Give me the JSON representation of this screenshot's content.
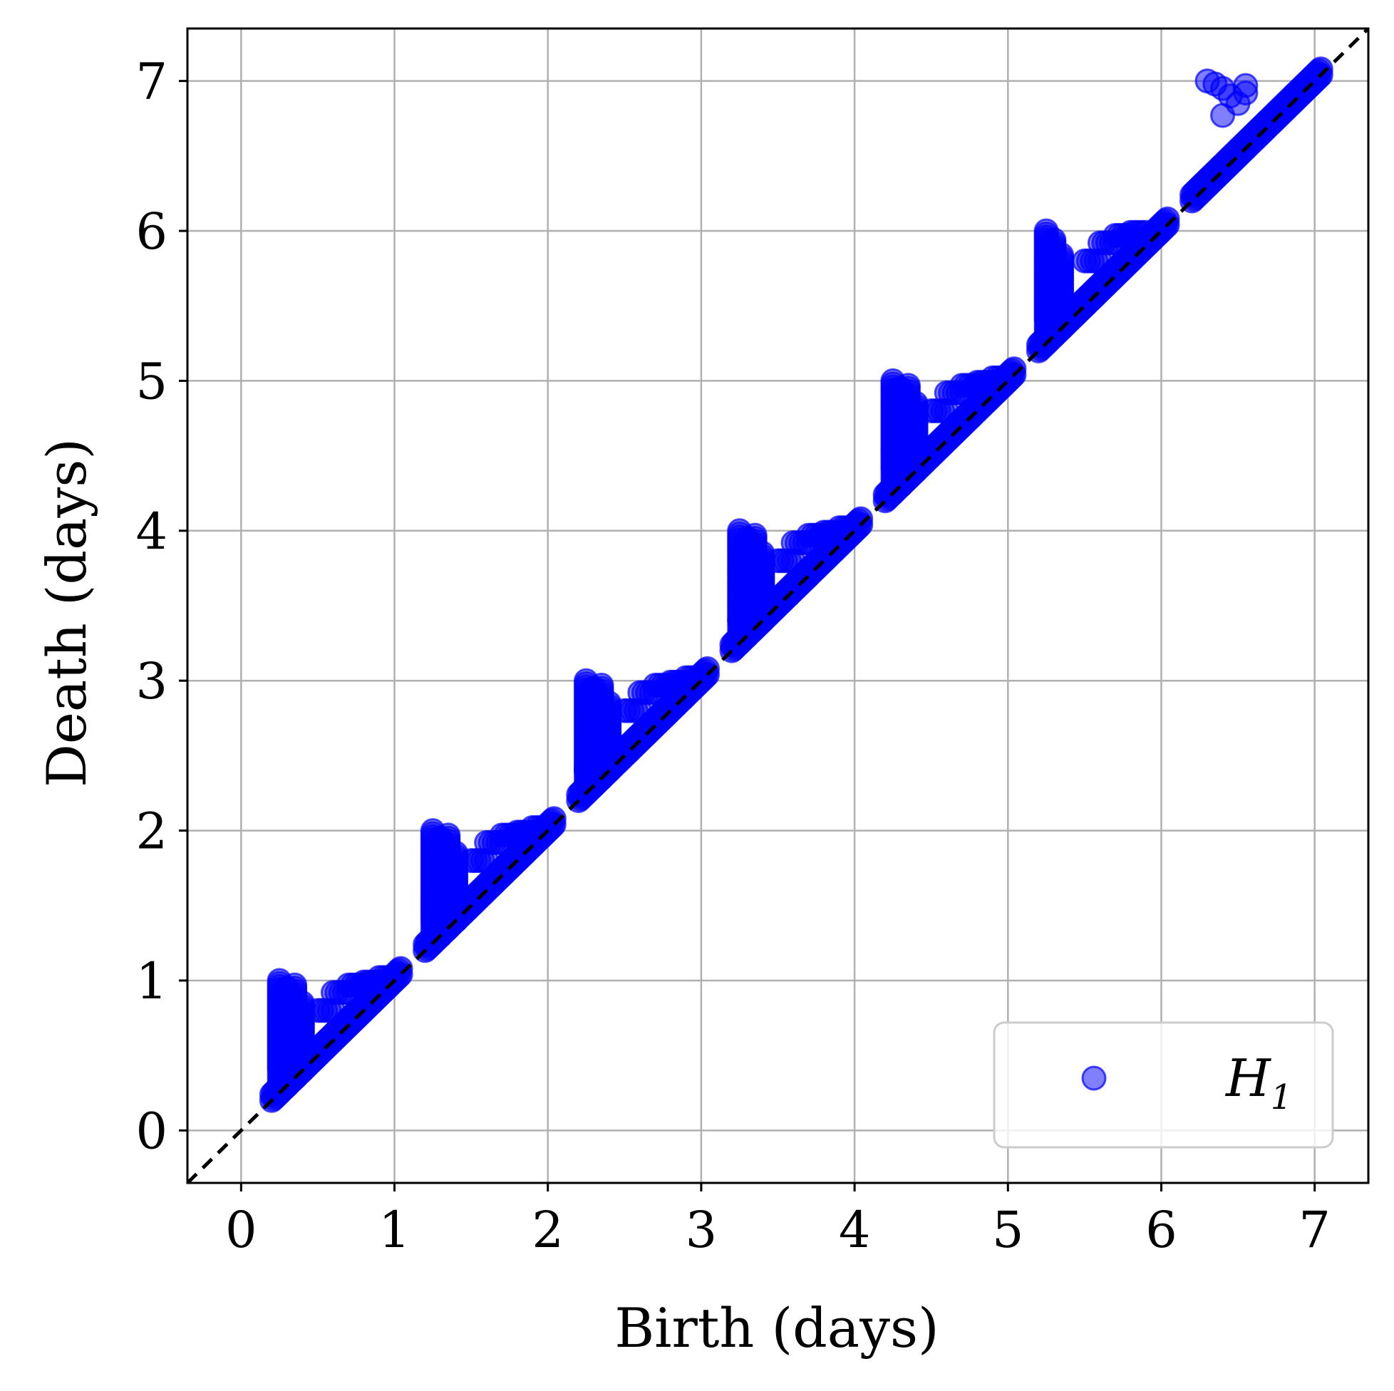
{
  "chart_data": {
    "type": "scatter",
    "title": "",
    "xlabel": "Birth (days)",
    "ylabel": "Death (days)",
    "xlim": [
      -0.35,
      7.35
    ],
    "ylim": [
      -0.35,
      7.35
    ],
    "x_ticks": [
      "0",
      "1",
      "2",
      "3",
      "4",
      "5",
      "6",
      "7"
    ],
    "y_ticks": [
      "0",
      "1",
      "2",
      "3",
      "4",
      "5",
      "6",
      "7"
    ],
    "grid": true,
    "legend_position": "lower-right",
    "reference_line": {
      "style": "dashed",
      "color": "#000000",
      "from": [
        -0.35,
        -0.35
      ],
      "to": [
        7.35,
        7.35
      ]
    },
    "series": [
      {
        "name": "H",
        "name_subscript": "1",
        "color": "#0000ff",
        "alpha": 0.5,
        "clusters": [
          {
            "day": 0,
            "range": [
              0.2,
              1.05
            ],
            "vertical": [
              [
                0.25,
                0.4,
                1.0
              ],
              [
                0.3,
                0.35,
                0.95
              ],
              [
                0.35,
                0.45,
                0.98
              ],
              [
                0.4,
                0.55,
                0.85
              ]
            ],
            "upper": [
              [
                0.55,
                0.8
              ],
              [
                0.65,
                0.92
              ],
              [
                0.75,
                0.97
              ],
              [
                0.85,
                0.99
              ],
              [
                0.95,
                1.02
              ]
            ]
          },
          {
            "day": 1,
            "range": [
              1.2,
              2.05
            ],
            "vertical": [
              [
                1.25,
                1.4,
                2.0
              ],
              [
                1.3,
                1.35,
                1.95
              ],
              [
                1.35,
                1.45,
                1.98
              ],
              [
                1.4,
                1.55,
                1.85
              ]
            ],
            "upper": [
              [
                1.55,
                1.8
              ],
              [
                1.65,
                1.92
              ],
              [
                1.75,
                1.97
              ],
              [
                1.85,
                1.99
              ],
              [
                1.95,
                2.02
              ]
            ]
          },
          {
            "day": 2,
            "range": [
              2.2,
              3.05
            ],
            "vertical": [
              [
                2.25,
                2.4,
                3.0
              ],
              [
                2.3,
                2.35,
                2.95
              ],
              [
                2.35,
                2.45,
                2.98
              ],
              [
                2.4,
                2.55,
                2.85
              ]
            ],
            "upper": [
              [
                2.55,
                2.8
              ],
              [
                2.65,
                2.92
              ],
              [
                2.75,
                2.97
              ],
              [
                2.85,
                2.99
              ],
              [
                2.95,
                3.02
              ]
            ]
          },
          {
            "day": 3,
            "range": [
              3.2,
              4.05
            ],
            "vertical": [
              [
                3.25,
                3.4,
                4.0
              ],
              [
                3.3,
                3.35,
                3.95
              ],
              [
                3.35,
                3.45,
                3.98
              ],
              [
                3.4,
                3.55,
                3.85
              ]
            ],
            "upper": [
              [
                3.55,
                3.8
              ],
              [
                3.65,
                3.92
              ],
              [
                3.75,
                3.97
              ],
              [
                3.85,
                3.99
              ],
              [
                3.95,
                4.02
              ]
            ]
          },
          {
            "day": 4,
            "range": [
              4.2,
              5.05
            ],
            "vertical": [
              [
                4.25,
                4.4,
                5.0
              ],
              [
                4.3,
                4.35,
                4.95
              ],
              [
                4.35,
                4.45,
                4.98
              ],
              [
                4.4,
                4.55,
                4.85
              ]
            ],
            "upper": [
              [
                4.55,
                4.8
              ],
              [
                4.65,
                4.92
              ],
              [
                4.75,
                4.97
              ],
              [
                4.85,
                4.99
              ],
              [
                4.95,
                5.02
              ]
            ]
          },
          {
            "day": 5,
            "range": [
              5.2,
              6.05
            ],
            "vertical": [
              [
                5.25,
                5.4,
                6.0
              ],
              [
                5.3,
                5.5,
                5.95
              ],
              [
                5.35,
                5.6,
                5.85
              ]
            ],
            "upper": [
              [
                5.55,
                5.8
              ],
              [
                5.65,
                5.92
              ],
              [
                5.75,
                5.97
              ],
              [
                5.85,
                5.99
              ]
            ]
          },
          {
            "day": 6,
            "range": [
              6.2,
              7.05
            ],
            "vertical": [],
            "top": [
              [
                6.3,
                7.0
              ],
              [
                6.35,
                6.98
              ],
              [
                6.4,
                6.95
              ],
              [
                6.45,
                6.9
              ],
              [
                6.4,
                6.77
              ],
              [
                6.5,
                6.85
              ],
              [
                6.55,
                6.92
              ],
              [
                6.55,
                6.97
              ]
            ],
            "upper": []
          }
        ]
      }
    ]
  }
}
